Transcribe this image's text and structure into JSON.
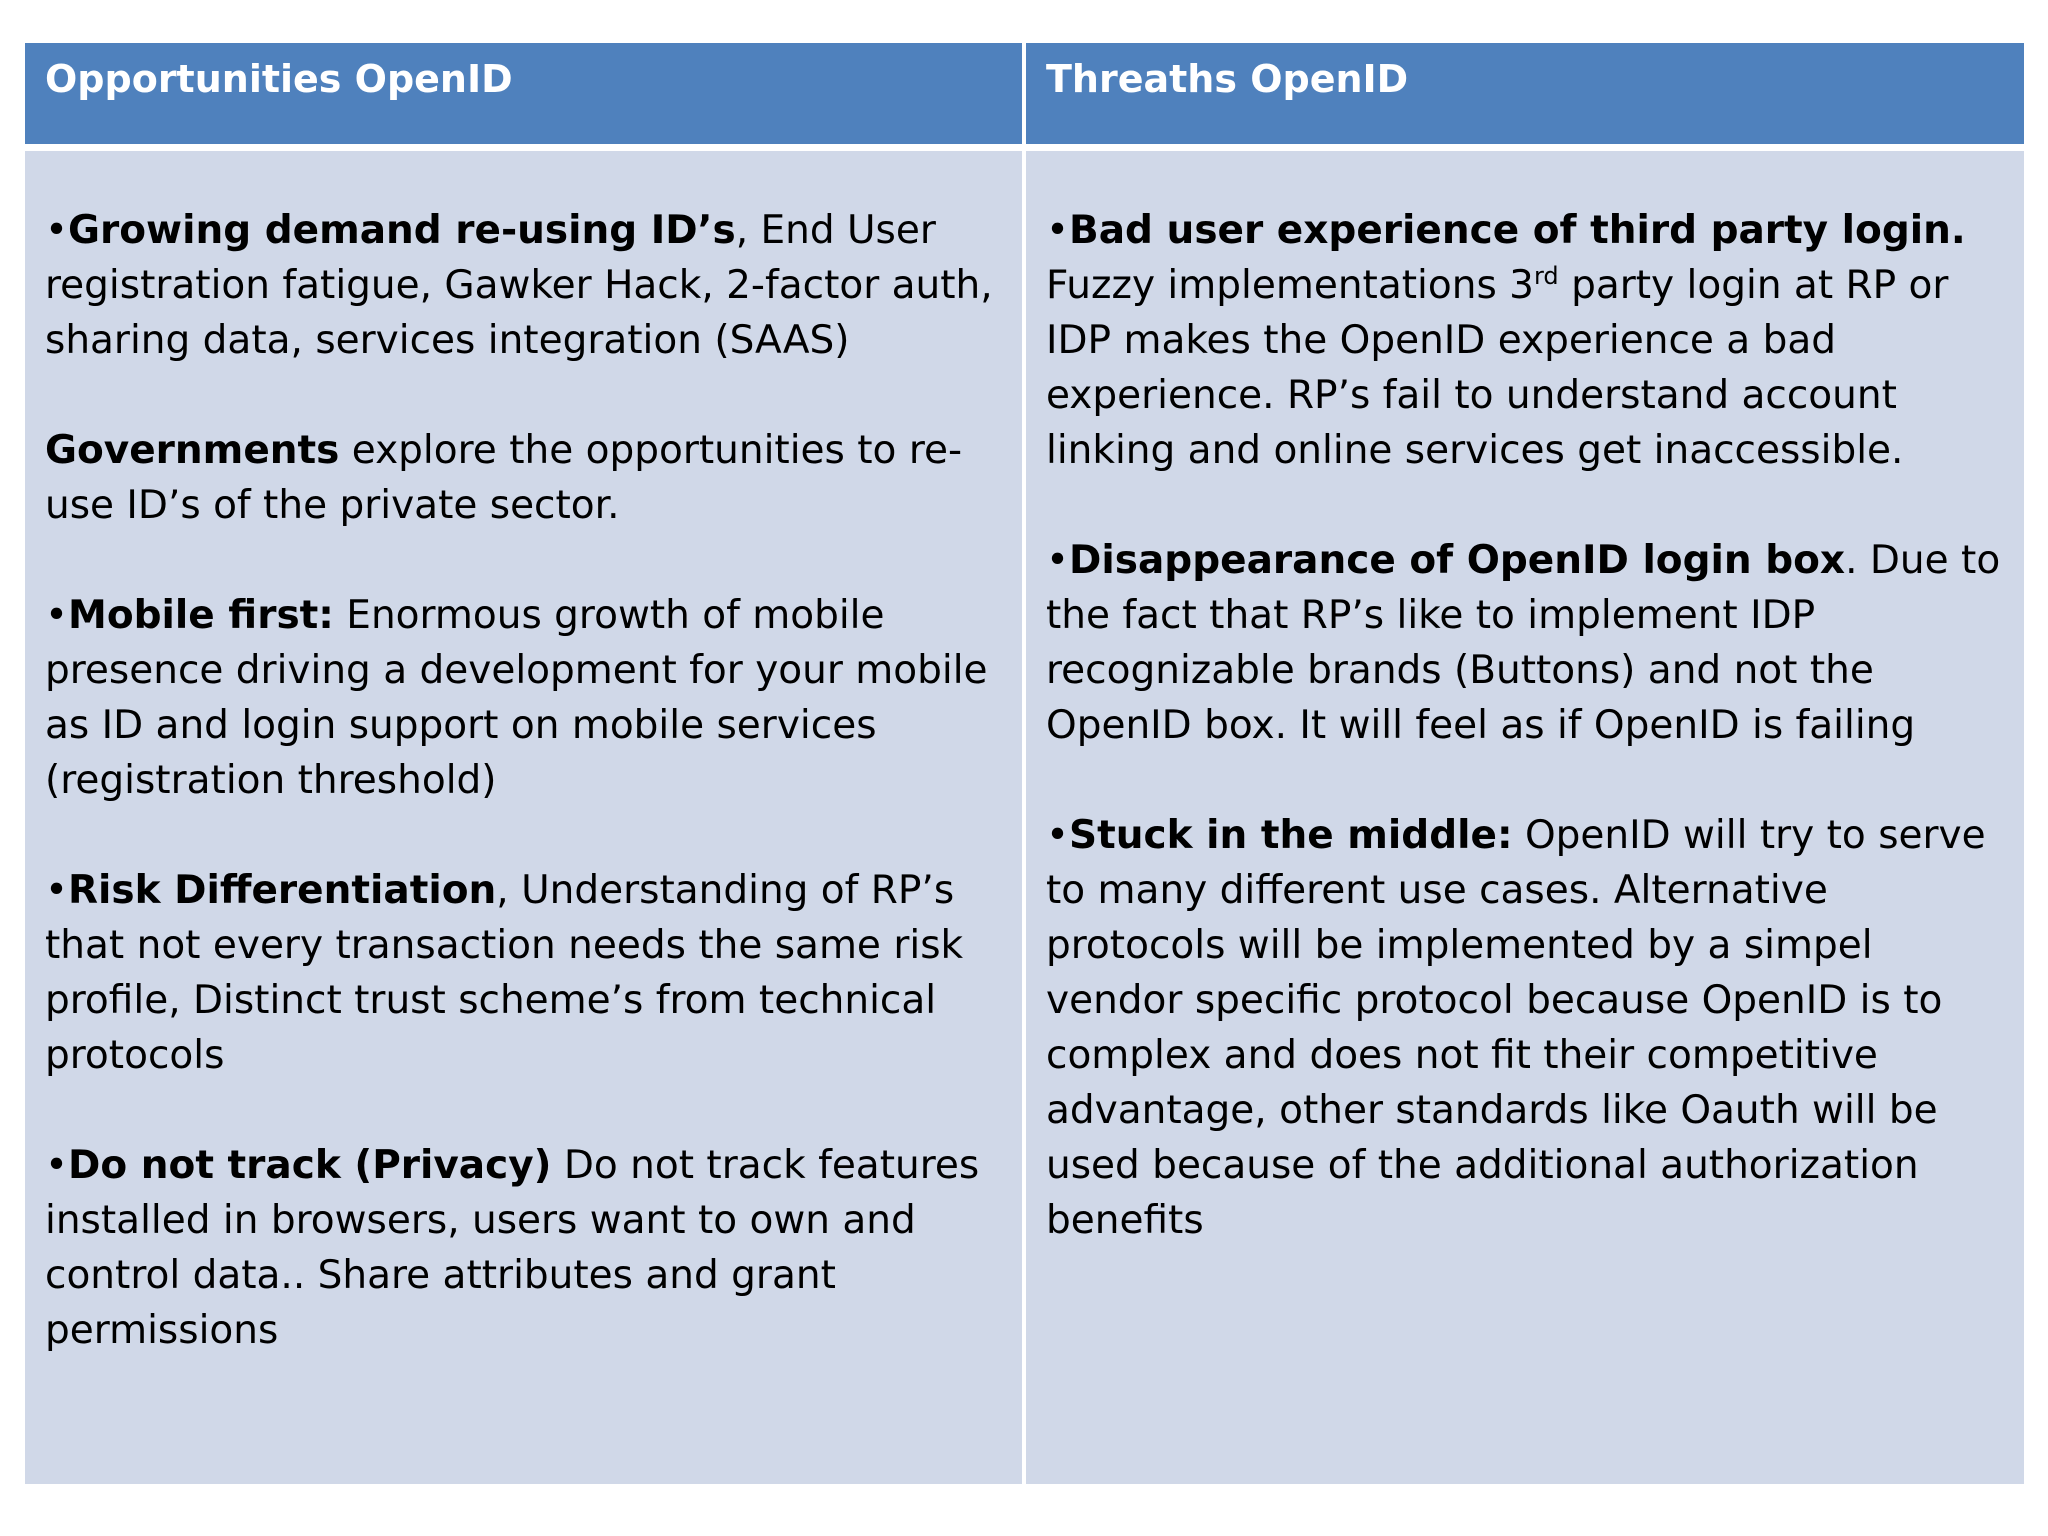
{
  "table": {
    "headers": [
      "Opportunities OpenID",
      "Threaths OpenID"
    ],
    "opportunities": [
      {
        "bullet": "•",
        "lead": "Growing demand re-using ID’s",
        "text": ", End User registration fatigue, Gawker Hack, 2-factor auth, sharing data, services integration (SAAS)"
      },
      {
        "bullet": "",
        "lead": "Governments",
        "text": " explore the opportunities to re-use ID’s of the private sector."
      },
      {
        "bullet": "•",
        "lead": "Mobile first:",
        "text": " Enormous growth of mobile presence driving a development for your mobile as ID and login support on mobile services (registration threshold)"
      },
      {
        "bullet": "•",
        "lead": "Risk Differentiation",
        "text": ", Understanding of RP’s that not every transaction needs the same risk profile, Distinct trust scheme’s from technical protocols"
      },
      {
        "bullet": "•",
        "lead": "Do not track (Privacy)",
        "text": " Do not track features installed in browsers, users want  to own and control data.. Share attributes  and grant permissions"
      }
    ],
    "threats": [
      {
        "bullet": "•",
        "lead": "Bad user experience of third party login.",
        "text_before": " Fuzzy implementations 3",
        "sup": "rd",
        "text": " party login at RP or IDP makes the OpenID experience a bad experience. RP’s fail to understand account linking and online services get inaccessible."
      },
      {
        "bullet": "•",
        "lead": "Disappearance of OpenID login box",
        "text": ". Due to the fact that RP’s like to implement IDP recognizable brands (Buttons) and not the OpenID box. It will feel as if OpenID is failing"
      },
      {
        "bullet": "•",
        "lead": "Stuck in the middle:",
        "text": " OpenID will try to serve to many different  use cases. Alternative protocols will be implemented  by a simpel vendor specific protocol because OpenID is to complex and does not fit their competitive advantage, other standards like Oauth will be used because of the additional authorization benefits"
      }
    ]
  },
  "colors": {
    "header_bg": "#4f81bd",
    "body_bg": "#d0d8e8",
    "header_text": "#ffffff"
  }
}
